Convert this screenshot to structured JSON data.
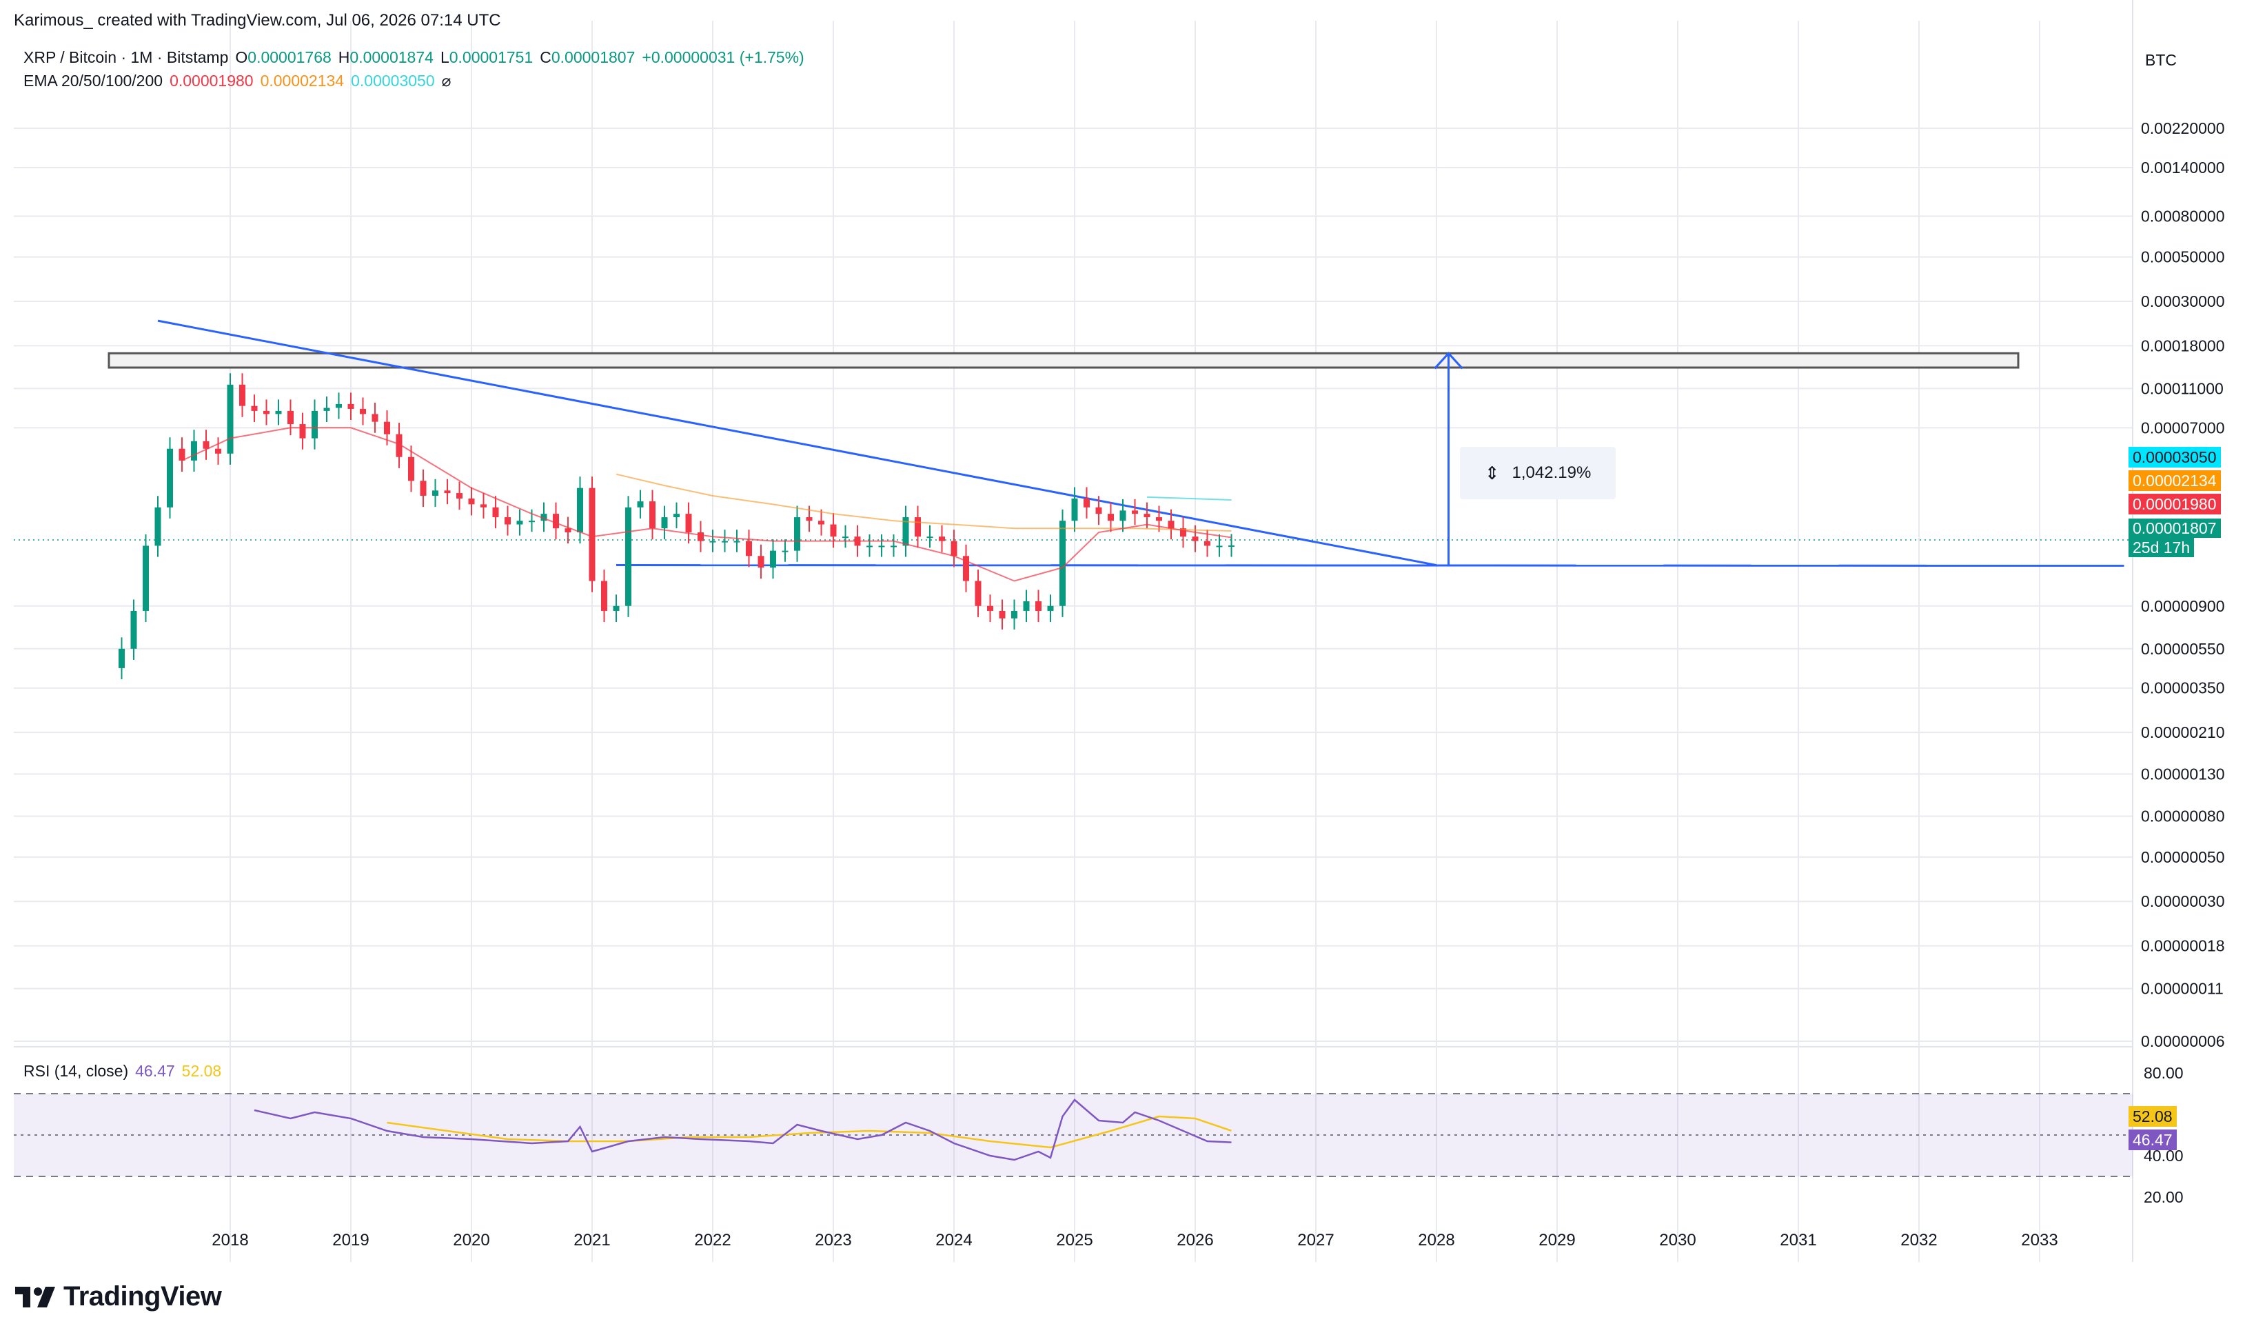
{
  "credit": "Karimous_ created with TradingView.com, Jul 06, 2026 07:14 UTC",
  "header": {
    "symbol": "XRP / Bitcoin · 1M · Bitstamp",
    "open_label": "O",
    "open": "0.00001768",
    "high_label": "H",
    "high": "0.00001874",
    "low_label": "L",
    "low": "0.00001751",
    "close_label": "C",
    "close": "0.00001807",
    "change": "+0.00000031 (+1.75%)"
  },
  "ema": {
    "label": "EMA 20/50/100/200",
    "v20": "0.00001980",
    "v50": "0.00002134",
    "v100": "0.00003050",
    "v200": "⌀",
    "colors": {
      "ema20": "#f23645",
      "ema50": "#f7931a",
      "ema100": "#36d6dc"
    }
  },
  "currency": "BTC",
  "price_badges": {
    "ema100": "0.00003050",
    "ema50": "0.00002134",
    "ema20": "0.00001980",
    "last": "0.00001807",
    "countdown": "25d 17h"
  },
  "measure_label": "1,042.19%",
  "rsi": {
    "label": "RSI (14, close)",
    "value": "46.47",
    "ma": "52.08",
    "badge_value": "46.47",
    "badge_ma": "52.08"
  },
  "logo_text": "TradingView",
  "colors": {
    "up": "#089981",
    "down": "#f23645",
    "drawing": "#2962ff",
    "rsi": "#7e57c2",
    "rsi_ma": "#f5c518"
  },
  "chart_data": [
    {
      "type": "candlestick",
      "scale": "log",
      "x_ticks": [
        "2018",
        "2019",
        "2020",
        "2021",
        "2022",
        "2023",
        "2024",
        "2025",
        "2026",
        "2027",
        "2028",
        "2029",
        "2030",
        "2031",
        "2032",
        "2033"
      ],
      "y_ticks": [
        {
          "label": "0.00220000",
          "v": 0.0022
        },
        {
          "label": "0.00140000",
          "v": 0.0014
        },
        {
          "label": "0.00080000",
          "v": 0.0008
        },
        {
          "label": "0.00050000",
          "v": 0.0005
        },
        {
          "label": "0.00030000",
          "v": 0.0003
        },
        {
          "label": "0.00018000",
          "v": 0.00018
        },
        {
          "label": "0.00011000",
          "v": 0.00011
        },
        {
          "label": "0.00007000",
          "v": 7e-05
        },
        {
          "label": "0.00000900",
          "v": 9e-06
        },
        {
          "label": "0.00000550",
          "v": 5.5e-06
        },
        {
          "label": "0.00000350",
          "v": 3.5e-06
        },
        {
          "label": "0.00000210",
          "v": 2.1e-06
        },
        {
          "label": "0.00000130",
          "v": 1.3e-06
        },
        {
          "label": "0.00000080",
          "v": 8e-07
        },
        {
          "label": "0.00000050",
          "v": 5e-07
        },
        {
          "label": "0.00000030",
          "v": 3e-07
        },
        {
          "label": "0.00000018",
          "v": 1.8e-07
        },
        {
          "label": "0.00000011",
          "v": 1.1e-07
        },
        {
          "label": "0.00000006",
          "v": 6e-08
        }
      ],
      "closes": [
        [
          2017.1,
          5.5e-06
        ],
        [
          2017.2,
          8.5e-06
        ],
        [
          2017.3,
          1.8e-05
        ],
        [
          2017.4,
          2.8e-05
        ],
        [
          2017.5,
          5.5e-05
        ],
        [
          2017.6,
          4.8e-05
        ],
        [
          2017.7,
          6e-05
        ],
        [
          2017.8,
          5.5e-05
        ],
        [
          2017.9,
          5.2e-05
        ],
        [
          2018.0,
          0.000115
        ],
        [
          2018.1,
          9e-05
        ],
        [
          2018.2,
          8.5e-05
        ],
        [
          2018.3,
          8.2e-05
        ],
        [
          2018.4,
          8.5e-05
        ],
        [
          2018.5,
          7.3e-05
        ],
        [
          2018.6,
          6.2e-05
        ],
        [
          2018.7,
          8.5e-05
        ],
        [
          2018.8,
          8.8e-05
        ],
        [
          2018.9,
          9.2e-05
        ],
        [
          2019.0,
          8.7e-05
        ],
        [
          2019.1,
          8.2e-05
        ],
        [
          2019.2,
          7.5e-05
        ],
        [
          2019.3,
          6.5e-05
        ],
        [
          2019.4,
          5e-05
        ],
        [
          2019.5,
          3.8e-05
        ],
        [
          2019.6,
          3.2e-05
        ],
        [
          2019.7,
          3.4e-05
        ],
        [
          2019.8,
          3.3e-05
        ],
        [
          2019.9,
          3.1e-05
        ],
        [
          2020.0,
          2.9e-05
        ],
        [
          2020.1,
          2.8e-05
        ],
        [
          2020.2,
          2.5e-05
        ],
        [
          2020.3,
          2.3e-05
        ],
        [
          2020.4,
          2.4e-05
        ],
        [
          2020.5,
          2.4e-05
        ],
        [
          2020.6,
          2.6e-05
        ],
        [
          2020.7,
          2.2e-05
        ],
        [
          2020.8,
          2.1e-05
        ],
        [
          2020.9,
          3.5e-05
        ],
        [
          2021.0,
          1.2e-05
        ],
        [
          2021.1,
          8.5e-06
        ],
        [
          2021.2,
          9e-06
        ],
        [
          2021.3,
          2.8e-05
        ],
        [
          2021.4,
          3e-05
        ],
        [
          2021.5,
          2.2e-05
        ],
        [
          2021.6,
          2.5e-05
        ],
        [
          2021.7,
          2.6e-05
        ],
        [
          2021.8,
          2.1e-05
        ],
        [
          2021.9,
          1.9e-05
        ],
        [
          2022.0,
          1.9e-05
        ],
        [
          2022.1,
          1.9e-05
        ],
        [
          2022.2,
          1.9e-05
        ],
        [
          2022.3,
          1.6e-05
        ],
        [
          2022.4,
          1.4e-05
        ],
        [
          2022.5,
          1.7e-05
        ],
        [
          2022.6,
          1.7e-05
        ],
        [
          2022.7,
          2.5e-05
        ],
        [
          2022.8,
          2.4e-05
        ],
        [
          2022.9,
          2.3e-05
        ],
        [
          2023.0,
          2e-05
        ],
        [
          2023.1,
          2e-05
        ],
        [
          2023.2,
          1.8e-05
        ],
        [
          2023.3,
          1.8e-05
        ],
        [
          2023.4,
          1.8e-05
        ],
        [
          2023.5,
          1.8e-05
        ],
        [
          2023.6,
          2.5e-05
        ],
        [
          2023.7,
          2e-05
        ],
        [
          2023.8,
          2e-05
        ],
        [
          2023.9,
          1.9e-05
        ],
        [
          2024.0,
          1.6e-05
        ],
        [
          2024.1,
          1.2e-05
        ],
        [
          2024.2,
          9e-06
        ],
        [
          2024.3,
          8.5e-06
        ],
        [
          2024.4,
          7.8e-06
        ],
        [
          2024.5,
          8.5e-06
        ],
        [
          2024.6,
          9.5e-06
        ],
        [
          2024.7,
          8.5e-06
        ],
        [
          2024.8,
          9e-06
        ],
        [
          2024.9,
          2.4e-05
        ],
        [
          2025.0,
          3.1e-05
        ],
        [
          2025.1,
          2.8e-05
        ],
        [
          2025.2,
          2.6e-05
        ],
        [
          2025.3,
          2.4e-05
        ],
        [
          2025.4,
          2.7e-05
        ],
        [
          2025.5,
          2.6e-05
        ],
        [
          2025.6,
          2.5e-05
        ],
        [
          2025.7,
          2.4e-05
        ],
        [
          2025.8,
          2.2e-05
        ],
        [
          2025.9,
          2e-05
        ],
        [
          2026.0,
          1.9e-05
        ],
        [
          2026.1,
          1.8e-05
        ],
        [
          2026.2,
          1.8e-05
        ],
        [
          2026.3,
          1.807e-05
        ]
      ],
      "ema20": [
        [
          2017.6,
          4.8e-05
        ],
        [
          2018.0,
          6.2e-05
        ],
        [
          2018.5,
          7e-05
        ],
        [
          2019.0,
          7e-05
        ],
        [
          2019.4,
          5.8e-05
        ],
        [
          2020.0,
          3.5e-05
        ],
        [
          2020.5,
          2.6e-05
        ],
        [
          2021.0,
          2e-05
        ],
        [
          2021.5,
          2.2e-05
        ],
        [
          2022.0,
          2e-05
        ],
        [
          2022.5,
          1.9e-05
        ],
        [
          2023.0,
          1.9e-05
        ],
        [
          2023.5,
          1.9e-05
        ],
        [
          2024.0,
          1.6e-05
        ],
        [
          2024.5,
          1.2e-05
        ],
        [
          2024.9,
          1.4e-05
        ],
        [
          2025.2,
          2.1e-05
        ],
        [
          2025.6,
          2.3e-05
        ],
        [
          2026.0,
          2.1e-05
        ],
        [
          2026.3,
          1.98e-05
        ]
      ],
      "ema50": [
        [
          2021.2,
          4.1e-05
        ],
        [
          2021.6,
          3.6e-05
        ],
        [
          2022.0,
          3.2e-05
        ],
        [
          2022.5,
          2.9e-05
        ],
        [
          2023.0,
          2.6e-05
        ],
        [
          2023.5,
          2.4e-05
        ],
        [
          2024.0,
          2.3e-05
        ],
        [
          2024.5,
          2.2e-05
        ],
        [
          2025.0,
          2.2e-05
        ],
        [
          2025.5,
          2.2e-05
        ],
        [
          2026.3,
          2.134e-05
        ]
      ],
      "ema100": [
        [
          2025.6,
          3.15e-05
        ],
        [
          2026.3,
          3.05e-05
        ]
      ],
      "rsi": [
        [
          2018.2,
          62
        ],
        [
          2018.5,
          58
        ],
        [
          2018.7,
          61
        ],
        [
          2019.0,
          58
        ],
        [
          2019.3,
          52
        ],
        [
          2019.6,
          49
        ],
        [
          2020.0,
          48
        ],
        [
          2020.5,
          46
        ],
        [
          2020.8,
          47
        ],
        [
          2020.9,
          54
        ],
        [
          2021.0,
          42
        ],
        [
          2021.3,
          47
        ],
        [
          2021.6,
          49
        ],
        [
          2021.9,
          48
        ],
        [
          2022.3,
          47
        ],
        [
          2022.5,
          46
        ],
        [
          2022.7,
          55
        ],
        [
          2022.9,
          52
        ],
        [
          2023.2,
          48
        ],
        [
          2023.4,
          50
        ],
        [
          2023.6,
          56
        ],
        [
          2023.8,
          52
        ],
        [
          2024.0,
          46
        ],
        [
          2024.3,
          40
        ],
        [
          2024.5,
          38
        ],
        [
          2024.7,
          42
        ],
        [
          2024.8,
          39
        ],
        [
          2024.9,
          59
        ],
        [
          2025.0,
          67
        ],
        [
          2025.2,
          57
        ],
        [
          2025.4,
          56
        ],
        [
          2025.5,
          61
        ],
        [
          2025.7,
          57
        ],
        [
          2025.9,
          52
        ],
        [
          2026.1,
          47
        ],
        [
          2026.3,
          46.47
        ]
      ],
      "rsi_ma": [
        [
          2019.3,
          56
        ],
        [
          2019.8,
          52
        ],
        [
          2020.3,
          48
        ],
        [
          2020.8,
          47
        ],
        [
          2021.3,
          47
        ],
        [
          2021.8,
          49
        ],
        [
          2022.3,
          49
        ],
        [
          2022.8,
          51
        ],
        [
          2023.3,
          52
        ],
        [
          2023.8,
          51
        ],
        [
          2024.3,
          47
        ],
        [
          2024.8,
          44
        ],
        [
          2025.3,
          52
        ],
        [
          2025.7,
          59
        ],
        [
          2026.0,
          58
        ],
        [
          2026.3,
          52.08
        ]
      ],
      "rsi_y_ticks": [
        {
          "label": "80.00",
          "v": 80
        },
        {
          "label": "40.00",
          "v": 40
        },
        {
          "label": "20.00",
          "v": 20
        }
      ],
      "rsi_levels": [
        30,
        50,
        70
      ],
      "annotations": {
        "descending_trendline": [
          [
            2017.4,
            0.00024
          ],
          [
            2028.0,
            1.44e-05
          ]
        ],
        "support_line": [
          [
            2021.2,
            1.44e-05
          ],
          [
            2033.7,
            1.43e-05
          ]
        ],
        "resistance_zone": [
          0.00014,
          0.000165
        ],
        "target_arrow": {
          "x": 2028.1,
          "from": 1.44e-05,
          "to": 0.000165
        }
      }
    }
  ]
}
